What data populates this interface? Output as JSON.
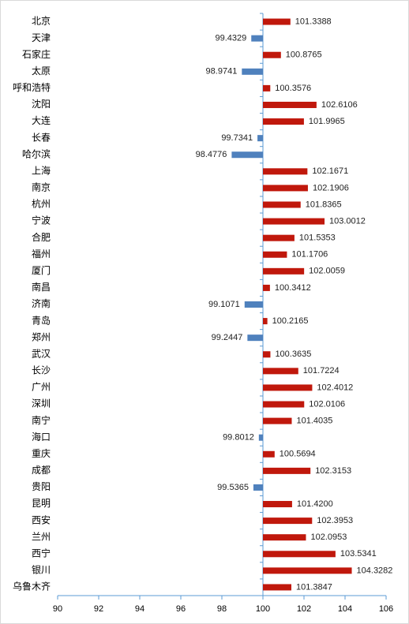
{
  "chart_data": {
    "type": "bar",
    "orientation": "horizontal",
    "categories": [
      "北京",
      "天津",
      "石家庄",
      "太原",
      "呼和浩特",
      "沈阳",
      "大连",
      "长春",
      "哈尔滨",
      "上海",
      "南京",
      "杭州",
      "宁波",
      "合肥",
      "福州",
      "厦门",
      "南昌",
      "济南",
      "青岛",
      "郑州",
      "武汉",
      "长沙",
      "广州",
      "深圳",
      "南宁",
      "海口",
      "重庆",
      "成都",
      "贵阳",
      "昆明",
      "西安",
      "兰州",
      "西宁",
      "银川",
      "乌鲁木齐"
    ],
    "values": [
      101.3388,
      99.4329,
      100.8765,
      98.9741,
      100.3576,
      102.6106,
      101.9965,
      99.7341,
      98.4776,
      102.1671,
      102.1906,
      101.8365,
      103.0012,
      101.5353,
      101.1706,
      102.0059,
      100.3412,
      99.1071,
      100.2165,
      99.2447,
      100.3635,
      101.7224,
      102.4012,
      102.0106,
      101.4035,
      99.8012,
      100.5694,
      102.3153,
      99.5365,
      101.42,
      102.3953,
      102.0953,
      103.5341,
      104.3282,
      101.3847
    ],
    "value_labels": [
      "101.3388",
      "99.4329",
      "100.8765",
      "98.9741",
      "100.3576",
      "102.6106",
      "101.9965",
      "99.7341",
      "98.4776",
      "102.1671",
      "102.1906",
      "101.8365",
      "103.0012",
      "101.5353",
      "101.1706",
      "102.0059",
      "100.3412",
      "99.1071",
      "100.2165",
      "99.2447",
      "100.3635",
      "101.7224",
      "102.4012",
      "102.0106",
      "101.4035",
      "99.8012",
      "100.5694",
      "102.3153",
      "99.5365",
      "101.4200",
      "102.3953",
      "102.0953",
      "103.5341",
      "104.3282",
      "101.3847"
    ],
    "base": 100,
    "positive_color": "#c0180c",
    "negative_color": "#4f81bd",
    "xlim": [
      90,
      106
    ],
    "xticks": [
      90,
      92,
      94,
      96,
      98,
      100,
      102,
      104,
      106
    ],
    "grid": false
  }
}
